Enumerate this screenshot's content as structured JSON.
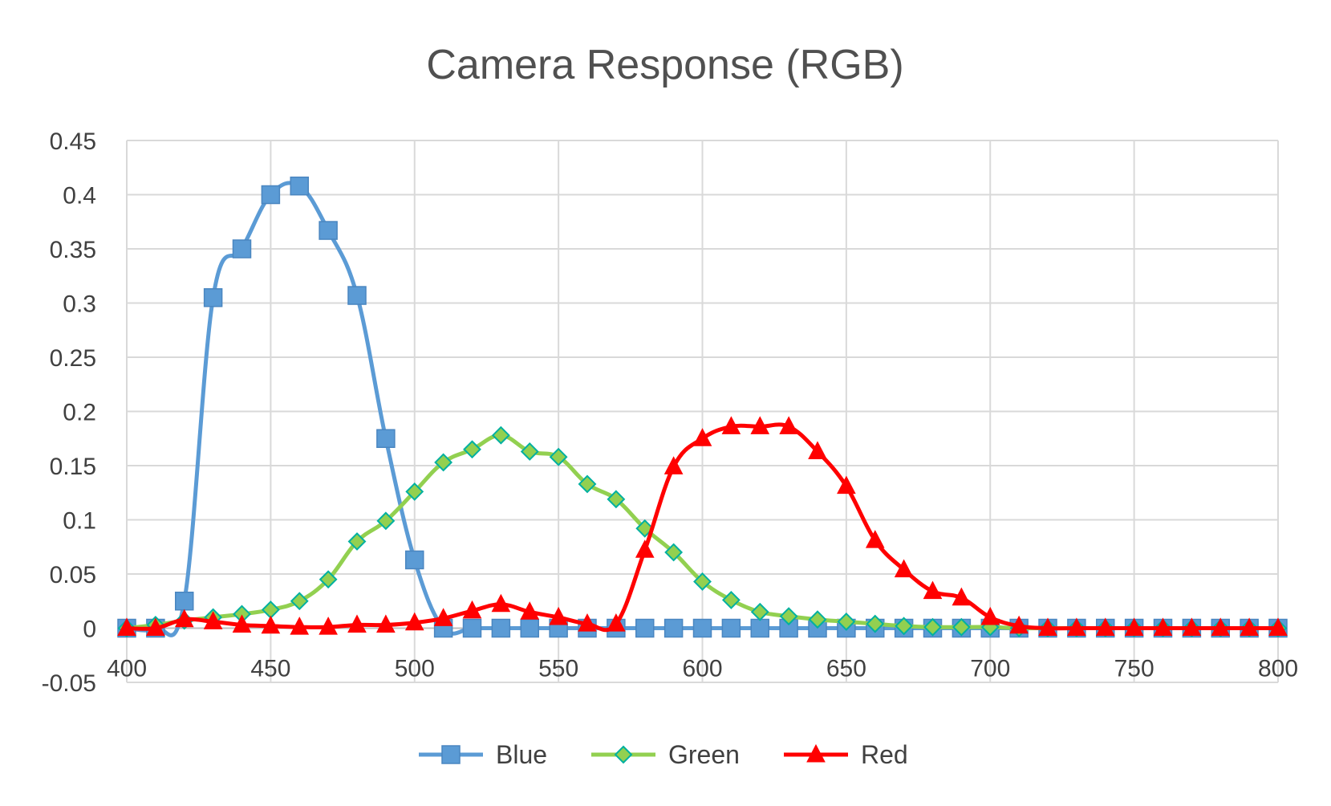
{
  "chart_data": {
    "type": "line",
    "title": "Camera Response (RGB)",
    "xlabel": "",
    "ylabel": "",
    "xlim": [
      400,
      800
    ],
    "ylim": [
      -0.05,
      0.45
    ],
    "x_ticks": [
      "400",
      "450",
      "500",
      "550",
      "600",
      "650",
      "700",
      "750",
      "800"
    ],
    "y_ticks": [
      "0.45",
      "0.4",
      "0.35",
      "0.3",
      "0.25",
      "0.2",
      "0.15",
      "0.1",
      "0.05",
      "0",
      "-0.05"
    ],
    "grid": true,
    "legend_position": "bottom",
    "x": [
      400,
      410,
      420,
      430,
      440,
      450,
      460,
      470,
      480,
      490,
      500,
      510,
      520,
      530,
      540,
      550,
      560,
      570,
      580,
      590,
      600,
      610,
      620,
      630,
      640,
      650,
      660,
      670,
      680,
      690,
      700,
      710,
      720,
      730,
      740,
      750,
      760,
      770,
      780,
      790,
      800
    ],
    "series": [
      {
        "name": "Blue",
        "color": "#5b9bd5",
        "marker": "square",
        "values": [
          0,
          0,
          0.025,
          0.305,
          0.35,
          0.4,
          0.408,
          0.367,
          0.307,
          0.175,
          0.063,
          0,
          0,
          0,
          0,
          0,
          0,
          0,
          0,
          0,
          0,
          0,
          0,
          0,
          0,
          0,
          0,
          0,
          0,
          0,
          0,
          0,
          0,
          0,
          0,
          0,
          0,
          0,
          0,
          0,
          0
        ]
      },
      {
        "name": "Green",
        "color": "#92d050",
        "marker": "diamond",
        "values": [
          0,
          0.003,
          0.007,
          0.01,
          0.013,
          0.017,
          0.025,
          0.045,
          0.08,
          0.099,
          0.126,
          0.153,
          0.165,
          0.178,
          0.163,
          0.158,
          0.133,
          0.119,
          0.092,
          0.07,
          0.043,
          0.026,
          0.015,
          0.011,
          0.008,
          0.006,
          0.004,
          0.002,
          0.001,
          0.001,
          0.001,
          0,
          0,
          0,
          0,
          0,
          0,
          0,
          0,
          0,
          0
        ]
      },
      {
        "name": "Red",
        "color": "#ff0000",
        "marker": "triangle",
        "values": [
          0,
          0,
          0.008,
          0.006,
          0.003,
          0.002,
          0.001,
          0.001,
          0.003,
          0.003,
          0.005,
          0.009,
          0.016,
          0.022,
          0.015,
          0.01,
          0.004,
          0.004,
          0.072,
          0.149,
          0.175,
          0.186,
          0.186,
          0.186,
          0.163,
          0.131,
          0.081,
          0.054,
          0.034,
          0.028,
          0.01,
          0.002,
          0,
          0,
          0,
          0,
          0,
          0,
          0,
          0,
          0
        ]
      }
    ]
  }
}
